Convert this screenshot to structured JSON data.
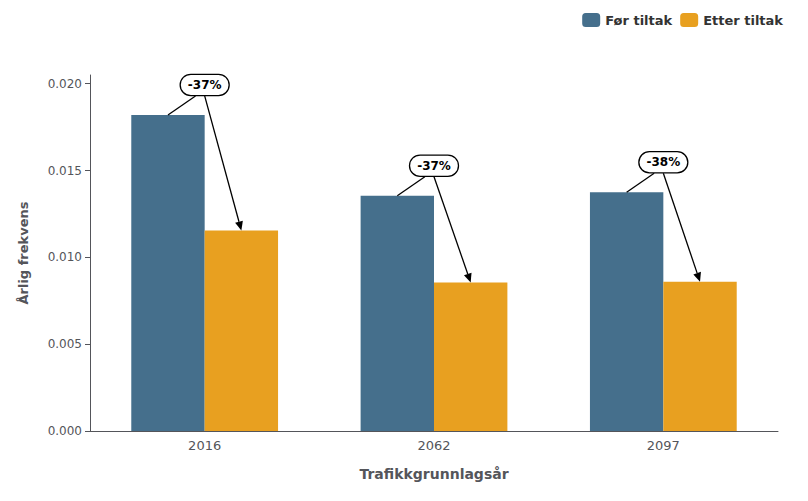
{
  "chart_data": {
    "type": "bar",
    "categories": [
      "2016",
      "2062",
      "2097"
    ],
    "series": [
      {
        "name": "Før tiltak",
        "color": "#456f8c",
        "values": [
          0.0182,
          0.01355,
          0.01375
        ]
      },
      {
        "name": "Etter tiltak",
        "color": "#e8a020",
        "values": [
          0.01155,
          0.00855,
          0.0086
        ]
      }
    ],
    "xlabel": "Trafikkgrunnlagsår",
    "ylabel": "Årlig frekvens",
    "ylim": [
      0,
      0.0205
    ],
    "yticks": [
      {
        "value": 0,
        "label": "0.000"
      },
      0.005,
      {
        "value": 0.01,
        "label": "0.010"
      },
      0.015,
      {
        "value": 0.02,
        "label": "0.020"
      }
    ],
    "annotations": [
      "-37%",
      "-37%",
      "-38%"
    ],
    "grid": false,
    "legend": "upper right"
  }
}
